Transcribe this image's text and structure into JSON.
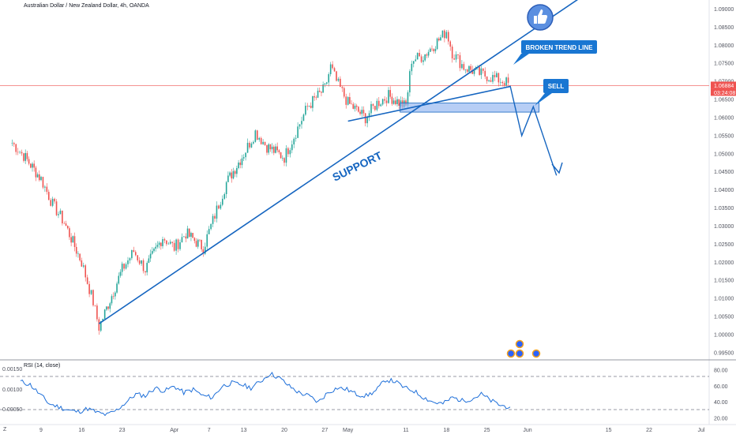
{
  "header": {
    "symbol_title": "Australian Dollar / New Zealand Dollar, 4h, OANDA"
  },
  "rsi_panel": {
    "title": "RSI (14, close)",
    "left_ticks": [
      "0.00150",
      "0.00100",
      "0.00050"
    ],
    "right_ticks": [
      "80.00",
      "60.00",
      "40.00",
      "20.00"
    ]
  },
  "price_axis": {
    "ticks": [
      "1.09000",
      "1.08500",
      "1.08000",
      "1.07500",
      "1.07000",
      "1.06500",
      "1.06000",
      "1.05500",
      "1.05000",
      "1.04500",
      "1.04000",
      "1.03500",
      "1.03000",
      "1.02500",
      "1.02000",
      "1.01500",
      "1.01000",
      "1.00500",
      "1.00000",
      "0.99500"
    ],
    "current_price": "1.06884",
    "countdown": "03:24:08"
  },
  "time_axis": {
    "ticks": [
      "9",
      "16",
      "23",
      "Apr",
      "7",
      "13",
      "20",
      "27",
      "May",
      "11",
      "18",
      "25",
      "Jun",
      "15",
      "22",
      "Jul"
    ]
  },
  "annotations": {
    "support": "SUPPORT",
    "broken_trend_line": "BROKEN TREND LINE",
    "sell": "SELL"
  },
  "colors": {
    "up_candle": "#26a69a",
    "down_candle": "#ef5350",
    "trend_line": "#1565c0",
    "rsi_line": "#1e6fd9",
    "price_tag": "#ef5350",
    "callout_bg": "#1976d2",
    "zone_fill": "#90b4f0"
  },
  "icons": {
    "like": "thumbs-up-icon",
    "events": "dividend-icon"
  },
  "chart_data": {
    "type": "candlestick",
    "title": "Australian Dollar / New Zealand Dollar, 4h, OANDA",
    "ylim": [
      0.993,
      1.0925
    ],
    "price_path": [
      [
        "Mar 4",
        1.053
      ],
      [
        "Mar 6",
        1.0495
      ],
      [
        "Mar 9",
        1.043
      ],
      [
        "Mar 11",
        1.036
      ],
      [
        "Mar 13",
        1.031
      ],
      [
        "Mar 16",
        1.02
      ],
      [
        "Mar 18",
        1.009
      ],
      [
        "Mar 19",
        1.002
      ],
      [
        "Mar 20",
        1.006
      ],
      [
        "Mar 23",
        1.018
      ],
      [
        "Mar 25",
        1.023
      ],
      [
        "Mar 27",
        1.018
      ],
      [
        "Mar 30",
        1.027
      ],
      [
        "Apr 1",
        1.024
      ],
      [
        "Apr 3",
        1.028
      ],
      [
        "Apr 6",
        1.024
      ],
      [
        "Apr 8",
        1.033
      ],
      [
        "Apr 10",
        1.042
      ],
      [
        "Apr 13",
        1.05
      ],
      [
        "Apr 15",
        1.056
      ],
      [
        "Apr 17",
        1.052
      ],
      [
        "Apr 20",
        1.049
      ],
      [
        "Apr 22",
        1.056
      ],
      [
        "Apr 24",
        1.063
      ],
      [
        "Apr 27",
        1.068
      ],
      [
        "Apr 28",
        1.074
      ],
      [
        "Apr 29",
        1.07
      ],
      [
        "May 1",
        1.064
      ],
      [
        "May 4",
        1.06
      ],
      [
        "May 6",
        1.064
      ],
      [
        "May 8",
        1.066
      ],
      [
        "May 11",
        1.063
      ],
      [
        "May 12",
        1.076
      ],
      [
        "May 14",
        1.077
      ],
      [
        "May 17",
        1.082
      ],
      [
        "May 18",
        1.084
      ],
      [
        "May 19",
        1.078
      ],
      [
        "May 21",
        1.074
      ],
      [
        "May 24",
        1.072
      ],
      [
        "May 26",
        1.071
      ],
      [
        "May 28",
        1.07
      ],
      [
        "May 29",
        1.0688
      ]
    ],
    "current_price": 1.06884,
    "support_line": {
      "from": [
        "Mar 19",
        1.003
      ],
      "to": [
        "Jun 10",
        1.093
      ]
    },
    "broken_trend_line": {
      "from": [
        "May 1",
        1.059
      ],
      "to": [
        "May 29",
        1.0686
      ]
    },
    "sell_zone": {
      "low": 1.0615,
      "high": 1.064
    },
    "projected_path": [
      [
        "May 29",
        1.0688
      ],
      [
        "May 31",
        1.055
      ],
      [
        "Jun 2",
        1.063
      ],
      [
        "Jun 6",
        1.044
      ]
    ],
    "rsi": {
      "period": 14,
      "ylim": [
        14,
        90
      ],
      "levels": [
        70,
        30
      ],
      "values": [
        66,
        62,
        50,
        38,
        34,
        30,
        28,
        32,
        27,
        24,
        30,
        40,
        50,
        48,
        58,
        54,
        60,
        52,
        56,
        48,
        46,
        60,
        64,
        62,
        58,
        66,
        76,
        70,
        60,
        52,
        48,
        40,
        52,
        58,
        56,
        50,
        48,
        54,
        68,
        66,
        58,
        54,
        46,
        40,
        38,
        46,
        42,
        44,
        50,
        42,
        36,
        34
      ]
    }
  }
}
